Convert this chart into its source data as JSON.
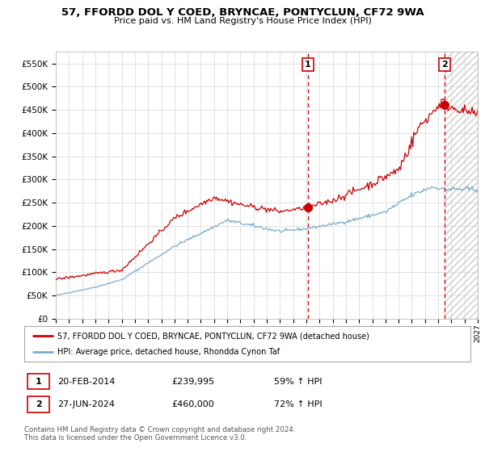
{
  "title": "57, FFORDD DOL Y COED, BRYNCAE, PONTYCLUN, CF72 9WA",
  "subtitle": "Price paid vs. HM Land Registry's House Price Index (HPI)",
  "legend_red": "57, FFORDD DOL Y COED, BRYNCAE, PONTYCLUN, CF72 9WA (detached house)",
  "legend_blue": "HPI: Average price, detached house, Rhondda Cynon Taf",
  "transaction1_date": "20-FEB-2014",
  "transaction1_price": "£239,995",
  "transaction1_hpi": "59% ↑ HPI",
  "transaction2_date": "27-JUN-2024",
  "transaction2_price": "£460,000",
  "transaction2_hpi": "72% ↑ HPI",
  "footer": "Contains HM Land Registry data © Crown copyright and database right 2024.\nThis data is licensed under the Open Government Licence v3.0.",
  "ylim": [
    0,
    575000
  ],
  "yticks": [
    0,
    50000,
    100000,
    150000,
    200000,
    250000,
    300000,
    350000,
    400000,
    450000,
    500000,
    550000
  ],
  "x_start_year": 1995,
  "x_end_year": 2027,
  "vline1_year": 2014.13,
  "vline2_year": 2024.49,
  "transaction1_value": 239995,
  "transaction2_value": 460000,
  "background_color": "#ffffff",
  "grid_color": "#dddddd",
  "red_color": "#cc0000",
  "blue_color": "#7aabcf",
  "vline_color": "#cc0000"
}
